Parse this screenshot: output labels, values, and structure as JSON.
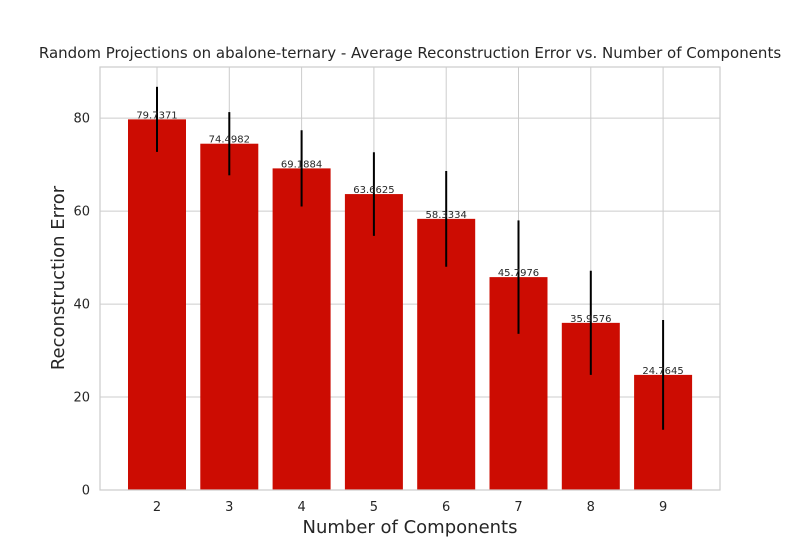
{
  "chart_data": {
    "type": "bar",
    "title": "Random Projections on abalone-ternary - Average Reconstruction Error vs. Number of Components",
    "xlabel": "Number of Components",
    "ylabel": "Reconstruction Error",
    "categories": [
      "2",
      "3",
      "4",
      "5",
      "6",
      "7",
      "8",
      "9"
    ],
    "values": [
      79.7371,
      74.4982,
      69.1884,
      63.6625,
      58.3334,
      45.7976,
      35.9576,
      24.7645
    ],
    "value_labels": [
      "79.7371",
      "74.4982",
      "69.1884",
      "63.6625",
      "58.3334",
      "45.7976",
      "35.9576",
      "24.7645"
    ],
    "errors": [
      7.0,
      6.8,
      8.2,
      9.0,
      10.3,
      12.2,
      11.2,
      11.8
    ],
    "ylim": [
      0,
      91
    ],
    "yticks": [
      "0",
      "20",
      "40",
      "60",
      "80"
    ],
    "ytick_values": [
      0,
      20,
      40,
      60,
      80
    ],
    "grid": true,
    "bar_color": "#cc0c02",
    "error_color": "#000000"
  }
}
